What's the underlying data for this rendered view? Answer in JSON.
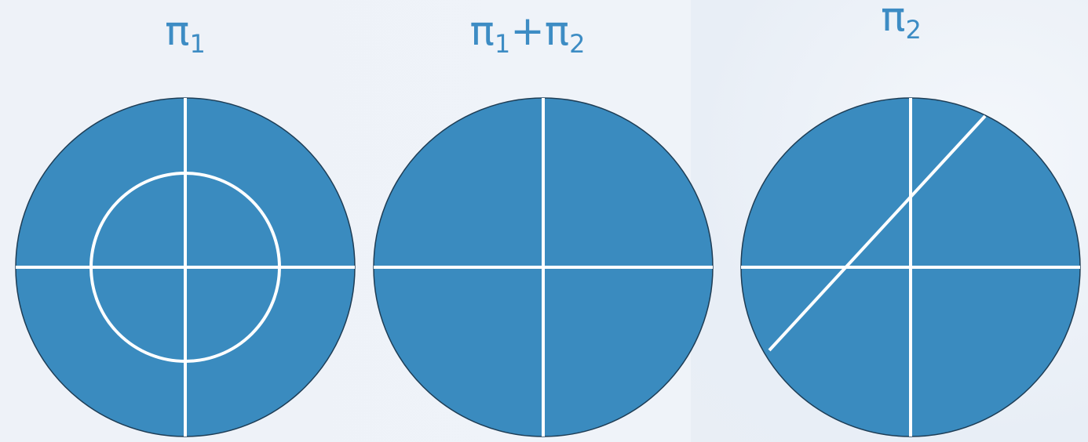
{
  "colors": {
    "disk_fill": "#3a8bbf",
    "disk_outline": "#1e3d55",
    "cut_line": "#ffffff",
    "title_text": "#3d8cc4"
  },
  "panels": [
    {
      "title_main": "π",
      "title_sub": "1",
      "cuts": [
        "horizontal-line",
        "vertical-line",
        "inner-circle"
      ]
    },
    {
      "title_main": "π",
      "title_sub": "1",
      "title_plus": "+",
      "title_main2": "π",
      "title_sub2": "2",
      "cuts": [
        "horizontal-line",
        "vertical-line"
      ]
    },
    {
      "title_main": "π",
      "title_sub": "2",
      "cuts": [
        "horizontal-line",
        "vertical-line",
        "diagonal-line"
      ]
    }
  ]
}
